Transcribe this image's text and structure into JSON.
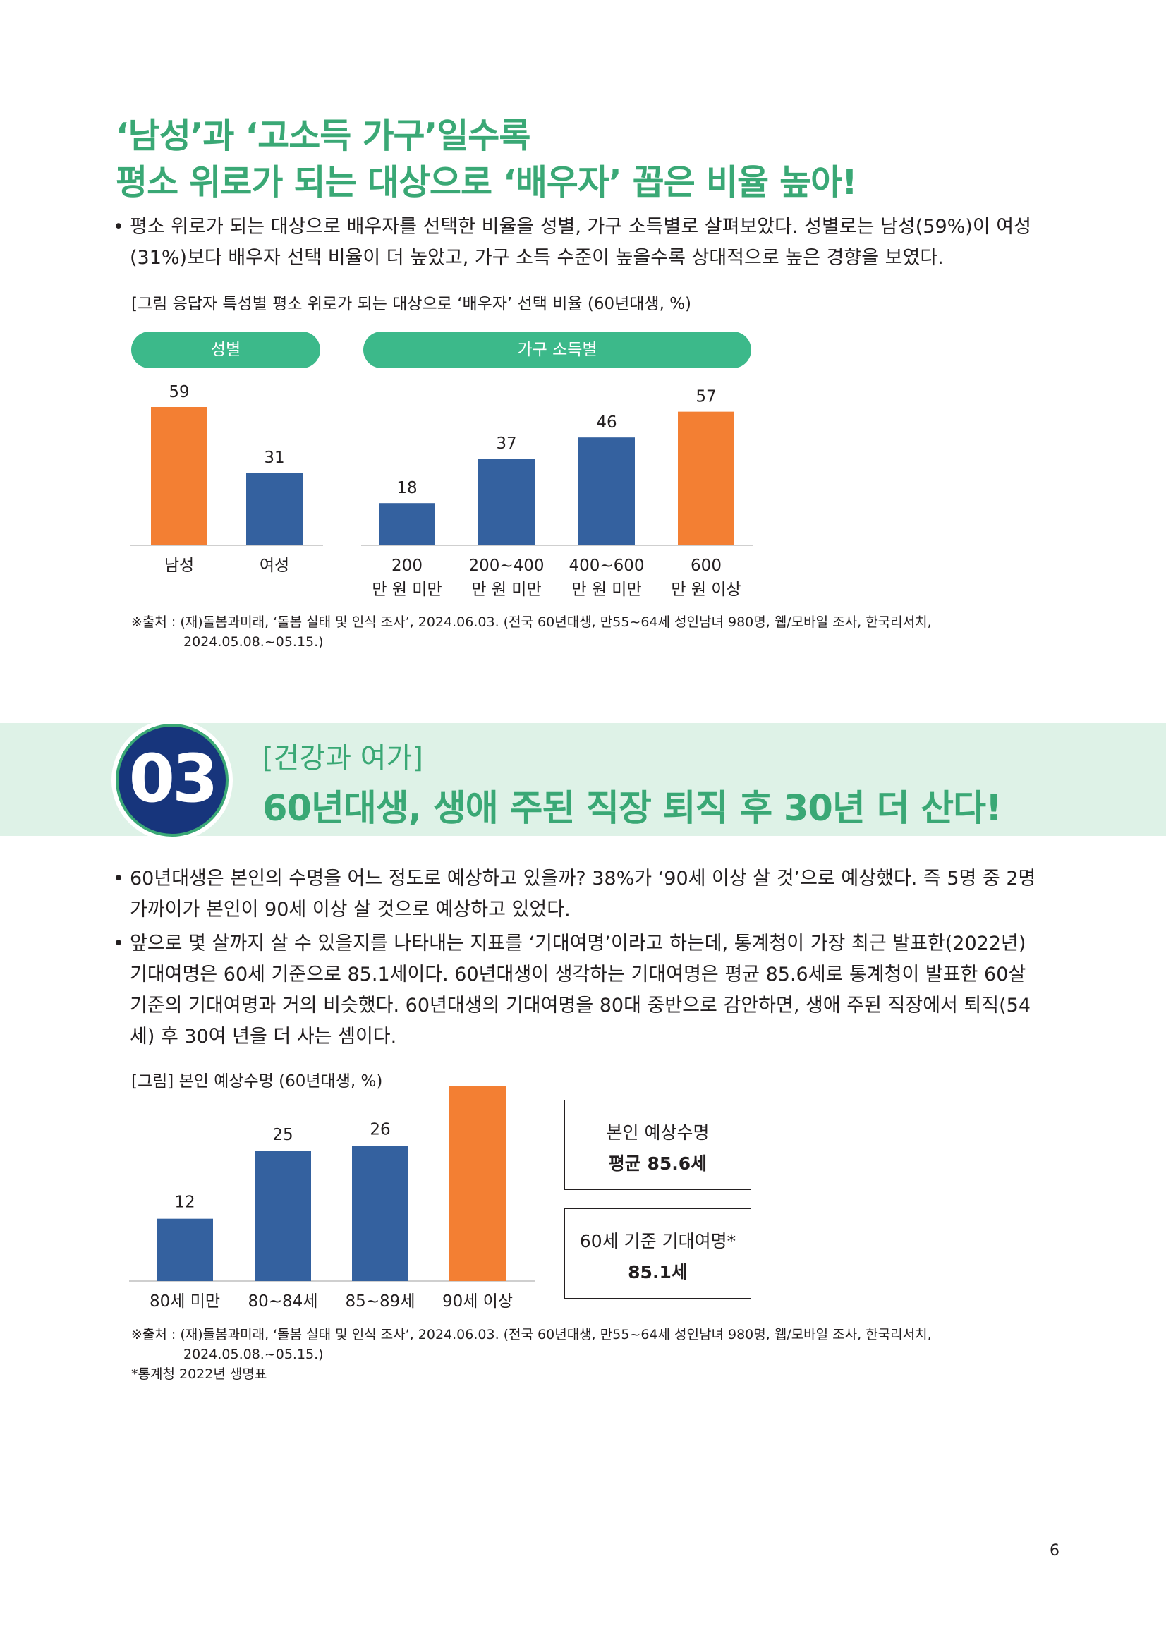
{
  "section1": {
    "headline_line1": "‘남성’과 ‘고소득 가구’일수록",
    "headline_line2": "평소 위로가 되는 대상으로 ‘배우자’ 꼽은 비율 높아!",
    "bullet_line1": "평소 위로가 되는 대상으로 배우자를 선택한 비율을 성별, 가구 소득별로 살펴보았다. 성별로는 남성(59%)이 여성",
    "bullet_line2": "(31%)보다 배우자 선택 비율이 더 높았고, 가구 소득 수준이 높을수록 상대적으로 높은 경향을 보였다.",
    "figure_caption": "[그림 응답자 특성별 평소 위로가 되는 대상으로 ‘배우자’ 선택 비율 (60년대생, %)",
    "group_gender": "성별",
    "group_income": "가구 소득별",
    "source_line1": "※출처 : (재)돌봄과미래, ‘돌봄 실태 및 인식 조사’, 2024.06.03. (전국 60년대생, 만55~64세 성인남녀 980명, 웹/모바일 조사, 한국리서치,",
    "source_line2": "2024.05.08.~05.15.)"
  },
  "section3": {
    "number": "03",
    "tag": "[건강과 여가]",
    "title": "60년대생, 생애 주된 직장 퇴직 후 30년 더 산다!",
    "bullet1_line1": "60년대생은 본인의 수명을 어느 정도로 예상하고 있을까? 38%가 ‘90세 이상 살 것’으로 예상했다. 즉 5명 중 2명",
    "bullet1_line2": "가까이가 본인이 90세 이상 살 것으로 예상하고 있었다.",
    "bullet2_line1": "앞으로 몇 살까지 살 수 있을지를 나타내는 지표를 ‘기대여명’이라고 하는데, 통계청이 가장 최근 발표한(2022년)",
    "bullet2_line2": "기대여명은 60세 기준으로 85.1세이다. 60년대생이 생각하는 기대여명은 평균 85.6세로 통계청이 발표한 60살",
    "bullet2_line3": "기준의 기대여명과 거의 비슷했다. 60년대생의 기대여명을 80대 중반으로 감안하면, 생애 주된 직장에서 퇴직(54",
    "bullet2_line4": "세) 후 30여 년을 더 사는 셈이다.",
    "figure_caption": "[그림] 본인 예상수명 (60년대생, %)",
    "box1_label": "본인 예상수명",
    "box1_value": "평균 85.6세",
    "box2_label": "60세 기준 기대여명*",
    "box2_value": "85.1세",
    "source_line1": "※출처 : (재)돌봄과미래, ‘돌봄 실태 및 인식 조사’, 2024.06.03. (전국 60년대생, 만55~64세 성인남녀 980명, 웹/모바일 조사, 한국리서치,",
    "source_line2": "2024.05.08.~05.15.)",
    "footnote": "*통계청 2022년 생명표"
  },
  "page_number": "6",
  "colors": {
    "accent_green": "#3aa875",
    "pill_green": "#3cb98a",
    "bar_blue": "#34619f",
    "bar_orange": "#f37f33",
    "badge_navy": "#17357c",
    "band": "#def2e7"
  },
  "chart_data": [
    {
      "type": "bar",
      "title": "",
      "groups": [
        {
          "name": "성별",
          "categories": [
            "남성",
            "여성"
          ],
          "values": [
            59,
            31
          ],
          "colors": [
            "#f37f33",
            "#34619f"
          ]
        },
        {
          "name": "가구 소득별",
          "categories": [
            [
              "200",
              "만 원 미만"
            ],
            [
              "200~400",
              "만 원 미만"
            ],
            [
              "400~600",
              "만 원 미만"
            ],
            [
              "600",
              "만 원 이상"
            ]
          ],
          "values": [
            18,
            37,
            46,
            57
          ],
          "colors": [
            "#34619f",
            "#34619f",
            "#34619f",
            "#f37f33"
          ]
        }
      ],
      "ylim": [
        0,
        60
      ],
      "grid": false
    },
    {
      "type": "bar",
      "title": "",
      "categories": [
        "80세 미만",
        "80~84세",
        "85~89세",
        "90세 이상"
      ],
      "values": [
        12,
        25,
        26,
        38
      ],
      "colors": [
        "#34619f",
        "#34619f",
        "#34619f",
        "#f37f33"
      ],
      "ylim": [
        0,
        40
      ],
      "grid": false
    }
  ]
}
